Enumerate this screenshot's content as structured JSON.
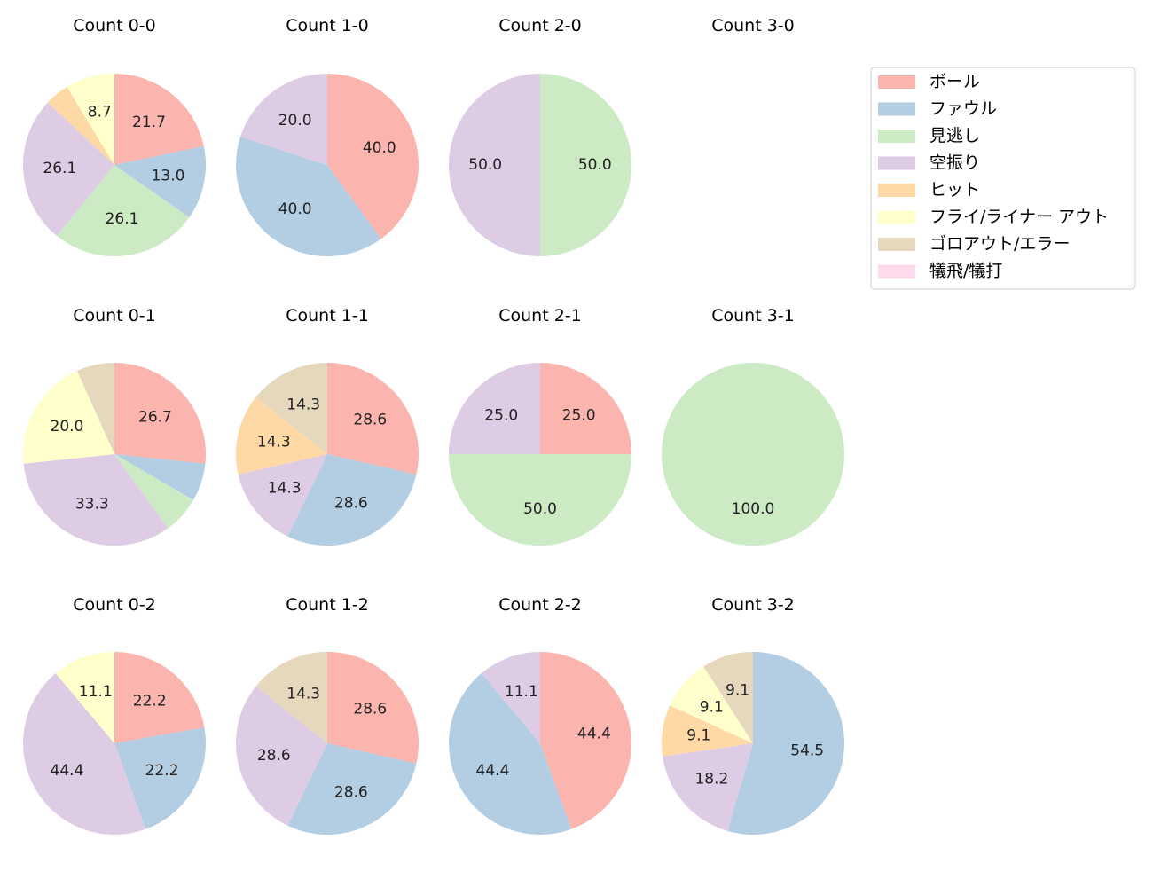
{
  "chart_data": {
    "type": "pie",
    "categories": [
      "ボール",
      "ファウル",
      "見逃し",
      "空振り",
      "ヒット",
      "フライ/ライナー アウト",
      "ゴロアウト/エラー",
      "犠飛/犠打"
    ],
    "colors": [
      "#fbb4ae",
      "#b3cde3",
      "#ccebc5",
      "#decbe4",
      "#fed9a6",
      "#ffffcc",
      "#e5d8bd",
      "#fddaec"
    ],
    "legend": {
      "position": "top-right",
      "entries": [
        "ボール",
        "ファウル",
        "見逃し",
        "空振り",
        "ヒット",
        "フライ/ライナー アウト",
        "ゴロアウト/エラー",
        "犠飛/犠打"
      ]
    },
    "pies": [
      {
        "title": "Count 0-0",
        "values": [
          21.7,
          13.0,
          26.1,
          26.1,
          4.3,
          8.7,
          0,
          0
        ],
        "labels": [
          "21.7",
          "13.0",
          "26.1",
          "26.1",
          "",
          "8.7",
          "",
          ""
        ]
      },
      {
        "title": "Count 1-0",
        "values": [
          40.0,
          40.0,
          0,
          20.0,
          0,
          0,
          0,
          0
        ],
        "labels": [
          "40.0",
          "40.0",
          "",
          "20.0",
          "",
          "",
          "",
          ""
        ]
      },
      {
        "title": "Count 2-0",
        "values": [
          0,
          0,
          50.0,
          50.0,
          0,
          0,
          0,
          0
        ],
        "labels": [
          "",
          "",
          "50.0",
          "50.0",
          "",
          "",
          "",
          ""
        ]
      },
      {
        "title": "Count 3-0",
        "values": [
          0,
          0,
          0,
          0,
          0,
          0,
          0,
          0
        ],
        "labels": [
          "",
          "",
          "",
          "",
          "",
          "",
          "",
          ""
        ]
      },
      {
        "title": "Count 0-1",
        "values": [
          26.7,
          6.7,
          6.7,
          33.3,
          0,
          20.0,
          6.7,
          0
        ],
        "labels": [
          "26.7",
          "",
          "",
          "33.3",
          "",
          "20.0",
          "",
          ""
        ]
      },
      {
        "title": "Count 1-1",
        "values": [
          28.6,
          28.6,
          0,
          14.3,
          14.3,
          0,
          14.3,
          0
        ],
        "labels": [
          "28.6",
          "28.6",
          "",
          "14.3",
          "14.3",
          "",
          "14.3",
          ""
        ]
      },
      {
        "title": "Count 2-1",
        "values": [
          25.0,
          0,
          50.0,
          25.0,
          0,
          0,
          0,
          0
        ],
        "labels": [
          "25.0",
          "",
          "50.0",
          "25.0",
          "",
          "",
          "",
          ""
        ]
      },
      {
        "title": "Count 3-1",
        "values": [
          0,
          0,
          100.0,
          0,
          0,
          0,
          0,
          0
        ],
        "labels": [
          "",
          "",
          "100.0",
          "",
          "",
          "",
          "",
          ""
        ]
      },
      {
        "title": "Count 0-2",
        "values": [
          22.2,
          22.2,
          0,
          44.4,
          0,
          11.1,
          0,
          0
        ],
        "labels": [
          "22.2",
          "22.2",
          "",
          "44.4",
          "",
          "11.1",
          "",
          ""
        ]
      },
      {
        "title": "Count 1-2",
        "values": [
          28.6,
          28.6,
          0,
          28.6,
          0,
          0,
          14.3,
          0
        ],
        "labels": [
          "28.6",
          "28.6",
          "",
          "28.6",
          "",
          "",
          "14.3",
          ""
        ]
      },
      {
        "title": "Count 2-2",
        "values": [
          44.4,
          44.4,
          0,
          11.1,
          0,
          0,
          0,
          0
        ],
        "labels": [
          "44.4",
          "44.4",
          "",
          "11.1",
          "",
          "",
          "",
          ""
        ]
      },
      {
        "title": "Count 3-2",
        "values": [
          0,
          54.5,
          0,
          18.2,
          9.1,
          9.1,
          9.1,
          0
        ],
        "labels": [
          "",
          "54.5",
          "",
          "18.2",
          "9.1",
          "9.1",
          "9.1",
          ""
        ]
      }
    ]
  }
}
